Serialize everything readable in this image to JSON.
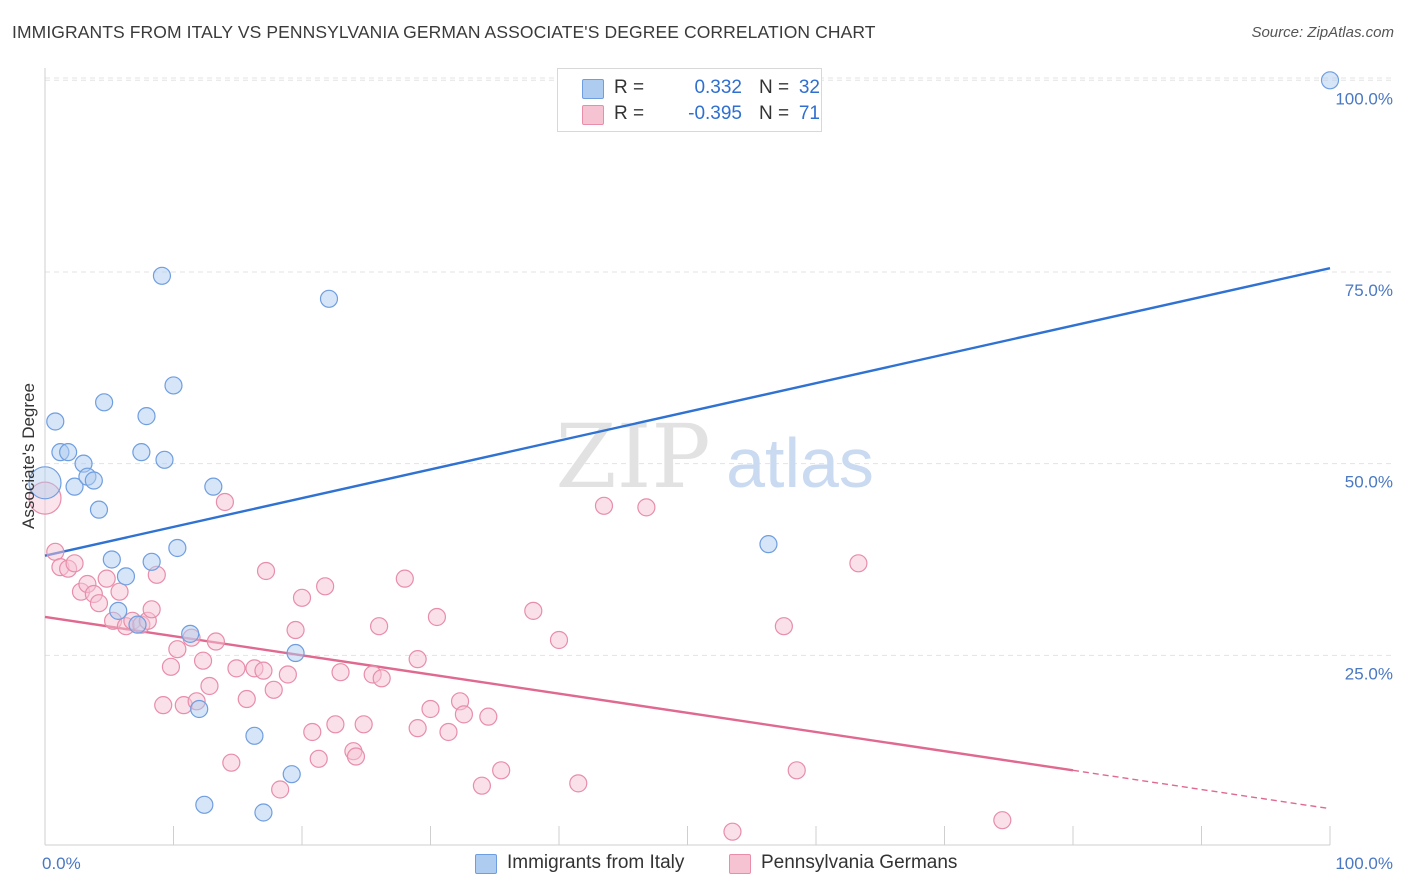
{
  "title": "IMMIGRANTS FROM ITALY VS PENNSYLVANIA GERMAN ASSOCIATE'S DEGREE CORRELATION CHART",
  "source": "Source: ZipAtlas.com",
  "watermark": {
    "zip": "ZIP",
    "atlas": "atlas"
  },
  "colors": {
    "blue_fill": "#aecbf0",
    "blue_stroke": "#6f9ee0",
    "blue_line": "#2f72d2",
    "pink_fill": "#f6c3d3",
    "pink_stroke": "#e88daa",
    "pink_line": "#e0698f",
    "tick_text": "#4a78c2",
    "grid": "#e3e3e3"
  },
  "legend": {
    "series1": {
      "r_label": "R =",
      "r_value": "0.332",
      "n_label": "N =",
      "n_value": "32"
    },
    "series2": {
      "r_label": "R =",
      "r_value": "-0.395",
      "n_label": "N =",
      "n_value": "71"
    }
  },
  "bottom_legend": {
    "series1": "Immigrants from Italy",
    "series2": "Pennsylvania Germans"
  },
  "chart_data": {
    "type": "scatter",
    "title": "IMMIGRANTS FROM ITALY VS PENNSYLVANIA GERMAN ASSOCIATE'S DEGREE CORRELATION CHART",
    "xlabel": "",
    "ylabel": "Associate's Degree",
    "xlim": [
      0,
      100
    ],
    "ylim": [
      0,
      100
    ],
    "x_tick_labels": [
      "0.0%",
      "100.0%"
    ],
    "y_ticks": [
      25,
      50,
      75,
      100
    ],
    "y_tick_labels": [
      "25.0%",
      "50.0%",
      "75.0%",
      "100.0%"
    ],
    "grid": true,
    "series": [
      {
        "name": "Immigrants from Italy",
        "r": 0.332,
        "n": 32,
        "trend": {
          "x0": 0,
          "y0": 38.0,
          "x1": 100,
          "y1": 75.5
        },
        "points": [
          {
            "x": 0.0,
            "y": 47.5,
            "big": true
          },
          {
            "x": 0.8,
            "y": 55.5
          },
          {
            "x": 1.2,
            "y": 51.5
          },
          {
            "x": 1.8,
            "y": 51.5
          },
          {
            "x": 2.3,
            "y": 47.0
          },
          {
            "x": 3.0,
            "y": 50.0
          },
          {
            "x": 3.3,
            "y": 48.3
          },
          {
            "x": 3.8,
            "y": 47.8
          },
          {
            "x": 4.2,
            "y": 44.0
          },
          {
            "x": 4.6,
            "y": 58.0
          },
          {
            "x": 5.2,
            "y": 37.5
          },
          {
            "x": 5.7,
            "y": 30.8
          },
          {
            "x": 6.3,
            "y": 35.3
          },
          {
            "x": 7.2,
            "y": 29.0
          },
          {
            "x": 7.5,
            "y": 51.5
          },
          {
            "x": 7.9,
            "y": 56.2
          },
          {
            "x": 8.3,
            "y": 37.2
          },
          {
            "x": 9.3,
            "y": 50.5
          },
          {
            "x": 9.1,
            "y": 74.5
          },
          {
            "x": 10.0,
            "y": 60.2
          },
          {
            "x": 10.3,
            "y": 39.0
          },
          {
            "x": 11.3,
            "y": 27.8
          },
          {
            "x": 12.0,
            "y": 18.0
          },
          {
            "x": 12.4,
            "y": 5.5
          },
          {
            "x": 13.1,
            "y": 47.0
          },
          {
            "x": 16.3,
            "y": 14.5
          },
          {
            "x": 17.0,
            "y": 4.5
          },
          {
            "x": 19.2,
            "y": 9.5
          },
          {
            "x": 19.5,
            "y": 25.3
          },
          {
            "x": 22.1,
            "y": 71.5
          },
          {
            "x": 56.3,
            "y": 39.5
          },
          {
            "x": 100.0,
            "y": 100.0
          }
        ]
      },
      {
        "name": "Pennsylvania Germans",
        "r": -0.395,
        "n": 71,
        "trend": {
          "x0": 0,
          "y0": 30.0,
          "x1": 80,
          "y1": 10.0,
          "dash_to_x": 100,
          "dash_to_y": 5.0
        },
        "points": [
          {
            "x": 0.0,
            "y": 45.5,
            "big": true
          },
          {
            "x": 0.8,
            "y": 38.5
          },
          {
            "x": 1.2,
            "y": 36.5
          },
          {
            "x": 1.8,
            "y": 36.3
          },
          {
            "x": 2.3,
            "y": 37.0
          },
          {
            "x": 2.8,
            "y": 33.3
          },
          {
            "x": 3.3,
            "y": 34.3
          },
          {
            "x": 3.8,
            "y": 33.0
          },
          {
            "x": 4.2,
            "y": 31.8
          },
          {
            "x": 4.8,
            "y": 35.0
          },
          {
            "x": 5.3,
            "y": 29.5
          },
          {
            "x": 5.8,
            "y": 33.3
          },
          {
            "x": 6.3,
            "y": 28.8
          },
          {
            "x": 6.8,
            "y": 29.5
          },
          {
            "x": 7.5,
            "y": 29.0
          },
          {
            "x": 8.0,
            "y": 29.5
          },
          {
            "x": 8.3,
            "y": 31.0
          },
          {
            "x": 8.7,
            "y": 35.5
          },
          {
            "x": 9.2,
            "y": 18.5
          },
          {
            "x": 9.8,
            "y": 23.5
          },
          {
            "x": 10.3,
            "y": 25.8
          },
          {
            "x": 10.8,
            "y": 18.5
          },
          {
            "x": 11.4,
            "y": 27.3
          },
          {
            "x": 11.8,
            "y": 19.0
          },
          {
            "x": 12.3,
            "y": 24.3
          },
          {
            "x": 12.8,
            "y": 21.0
          },
          {
            "x": 13.3,
            "y": 26.8
          },
          {
            "x": 14.0,
            "y": 45.0
          },
          {
            "x": 14.5,
            "y": 11.0
          },
          {
            "x": 14.9,
            "y": 23.3
          },
          {
            "x": 15.7,
            "y": 19.3
          },
          {
            "x": 16.3,
            "y": 23.3
          },
          {
            "x": 17.0,
            "y": 23.0
          },
          {
            "x": 17.2,
            "y": 36.0
          },
          {
            "x": 17.8,
            "y": 20.5
          },
          {
            "x": 18.3,
            "y": 7.5
          },
          {
            "x": 18.9,
            "y": 22.5
          },
          {
            "x": 19.5,
            "y": 28.3
          },
          {
            "x": 20.0,
            "y": 32.5
          },
          {
            "x": 20.8,
            "y": 15.0
          },
          {
            "x": 21.3,
            "y": 11.5
          },
          {
            "x": 21.8,
            "y": 34.0
          },
          {
            "x": 22.6,
            "y": 16.0
          },
          {
            "x": 23.0,
            "y": 22.8
          },
          {
            "x": 24.0,
            "y": 12.5
          },
          {
            "x": 24.2,
            "y": 11.8
          },
          {
            "x": 24.8,
            "y": 16.0
          },
          {
            "x": 25.5,
            "y": 22.5
          },
          {
            "x": 26.0,
            "y": 28.8
          },
          {
            "x": 26.2,
            "y": 22.0
          },
          {
            "x": 28.0,
            "y": 35.0
          },
          {
            "x": 29.0,
            "y": 24.5
          },
          {
            "x": 29.0,
            "y": 15.5
          },
          {
            "x": 30.0,
            "y": 18.0
          },
          {
            "x": 30.5,
            "y": 30.0
          },
          {
            "x": 31.4,
            "y": 15.0
          },
          {
            "x": 32.3,
            "y": 19.0
          },
          {
            "x": 32.6,
            "y": 17.3
          },
          {
            "x": 34.0,
            "y": 8.0
          },
          {
            "x": 34.5,
            "y": 17.0
          },
          {
            "x": 35.5,
            "y": 10.0
          },
          {
            "x": 38.0,
            "y": 30.8
          },
          {
            "x": 40.0,
            "y": 27.0
          },
          {
            "x": 41.5,
            "y": 8.3
          },
          {
            "x": 43.5,
            "y": 44.5
          },
          {
            "x": 46.8,
            "y": 44.3
          },
          {
            "x": 53.5,
            "y": 2.0
          },
          {
            "x": 57.5,
            "y": 28.8
          },
          {
            "x": 58.5,
            "y": 10.0
          },
          {
            "x": 63.3,
            "y": 37.0
          },
          {
            "x": 74.5,
            "y": 3.5
          }
        ]
      }
    ]
  }
}
